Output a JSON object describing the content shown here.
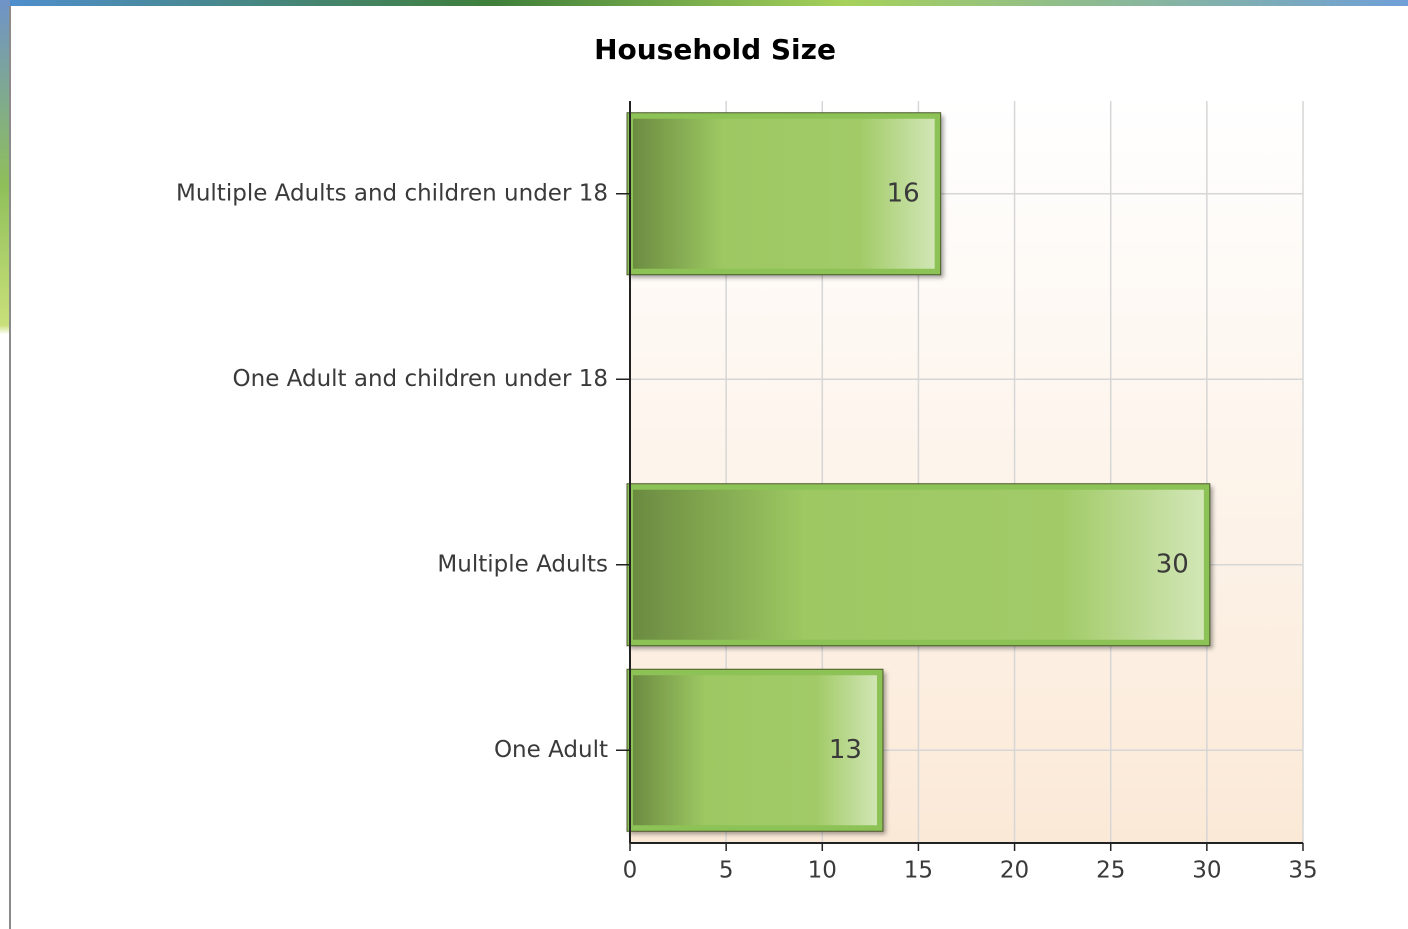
{
  "chart_data": {
    "type": "bar",
    "orientation": "horizontal",
    "title": "Household Size",
    "categories": [
      "Multiple Adults and children under 18",
      "One Adult and children under 18",
      "Multiple Adults",
      "One Adult"
    ],
    "values": [
      16,
      null,
      30,
      13
    ],
    "color": "#9dc862",
    "xlim": [
      0,
      35
    ],
    "xticks": [
      0,
      5,
      10,
      15,
      20,
      25,
      30,
      35
    ],
    "grid": true
  }
}
